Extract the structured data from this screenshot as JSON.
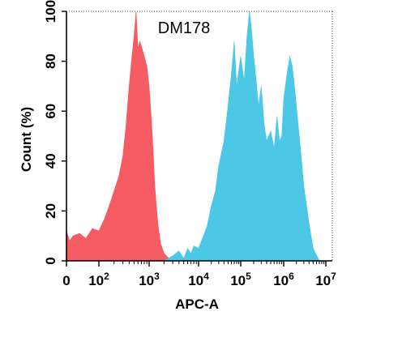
{
  "chart_data": {
    "type": "area",
    "title": "DM178",
    "xlabel": "APC-A",
    "ylabel": "Count  (%)",
    "x_scale": "biexponential",
    "xlim": [
      0,
      10000000
    ],
    "ylim": [
      0,
      100
    ],
    "x_ticks": [
      {
        "base": "0",
        "exp": ""
      },
      {
        "base": "10",
        "exp": "2"
      },
      {
        "base": "10",
        "exp": "3"
      },
      {
        "base": "10",
        "exp": "4"
      },
      {
        "base": "10",
        "exp": "5"
      },
      {
        "base": "10",
        "exp": "6"
      },
      {
        "base": "10",
        "exp": "7"
      }
    ],
    "y_ticks": [
      "0",
      "20",
      "40",
      "60",
      "80",
      "100"
    ],
    "series": [
      {
        "color": "#f45b63",
        "x": [
          0,
          10,
          20,
          40,
          60,
          80,
          100,
          130,
          160,
          200,
          250,
          300,
          350,
          400,
          450,
          500,
          550,
          600,
          650,
          700,
          800,
          900,
          1000,
          1100,
          1200,
          1300,
          1500,
          1700,
          2000,
          2500,
          3000
        ],
        "y": [
          12,
          8,
          10,
          11,
          9,
          13,
          12,
          17,
          22,
          28,
          34,
          42,
          55,
          70,
          81,
          90,
          100,
          85,
          88,
          86,
          82,
          78,
          70,
          58,
          45,
          30,
          15,
          7,
          3,
          1,
          0
        ]
      },
      {
        "color": "#4cc7e6",
        "x": [
          2000,
          3000,
          4000,
          5000,
          6000,
          7000,
          8000,
          10000,
          13000,
          16000,
          20000,
          25000,
          30000,
          40000,
          50000,
          60000,
          70000,
          80000,
          100000,
          120000,
          140000,
          160000,
          180000,
          200000,
          230000,
          260000,
          300000,
          350000,
          400000,
          500000,
          600000,
          700000,
          800000,
          900000,
          1000000,
          1200000,
          1400000,
          1600000,
          1800000,
          2000000,
          2500000,
          3000000,
          4000000,
          5000000,
          7000000
        ],
        "y": [
          0,
          2,
          4,
          1,
          5,
          3,
          6,
          5,
          10,
          14,
          22,
          28,
          38,
          48,
          62,
          75,
          88,
          70,
          82,
          72,
          90,
          100,
          92,
          82,
          72,
          62,
          70,
          55,
          48,
          52,
          45,
          58,
          48,
          50,
          65,
          75,
          82,
          78,
          70,
          62,
          45,
          30,
          15,
          5,
          0
        ]
      }
    ]
  }
}
